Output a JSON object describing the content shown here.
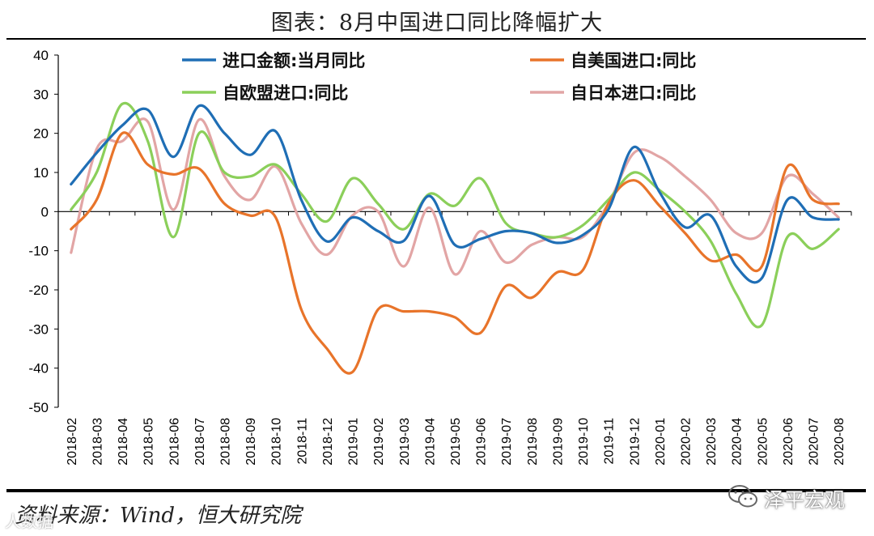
{
  "title": "图表：8月中国进口同比降幅扩大",
  "source": "资料来源：Wind，恒大研究院",
  "brand": "泽平宏观",
  "watermark": "人数据",
  "chart_data": {
    "type": "line",
    "title": "图表：8月中国进口同比降幅扩大",
    "ylim": [
      -50,
      40
    ],
    "yticks": [
      "40",
      "30",
      "20",
      "10",
      "0",
      "-10",
      "-20",
      "-30",
      "-40",
      "-50"
    ],
    "x": [
      "2018-02",
      "2018-03",
      "2018-04",
      "2018-05",
      "2018-06",
      "2018-07",
      "2018-08",
      "2018-09",
      "2018-10",
      "2018-11",
      "2018-12",
      "2019-01",
      "2019-02",
      "2019-03",
      "2019-04",
      "2019-05",
      "2019-06",
      "2019-07",
      "2019-08",
      "2019-09",
      "2019-10",
      "2019-11",
      "2019-12",
      "2020-01",
      "2020-02",
      "2020-03",
      "2020-04",
      "2020-05",
      "2020-06",
      "2020-07",
      "2020-08"
    ],
    "legend_position": "top",
    "series": [
      {
        "name": "进口金额:当月同比",
        "color": "#1f6eb5",
        "values": [
          7,
          15,
          22,
          26,
          14,
          27,
          20,
          14.5,
          20.5,
          3,
          -7.6,
          -1.5,
          -5,
          -7.5,
          4,
          -8.5,
          -7,
          -5,
          -5.5,
          -8,
          -6,
          0.5,
          16.5,
          5,
          -4,
          -1,
          -14,
          -17,
          3,
          -1.5,
          -2
        ]
      },
      {
        "name": "自美国进口:同比",
        "color": "#e8742a",
        "values": [
          -4.5,
          3,
          20,
          12,
          9.5,
          11,
          2,
          -1,
          -1.5,
          -25,
          -35,
          -41,
          -25,
          -25.5,
          -25.5,
          -27,
          -31,
          -19,
          -22,
          -15.5,
          -15,
          2,
          8,
          1.5,
          -5.5,
          -12.5,
          -11,
          -14,
          11.5,
          3,
          2
        ]
      },
      {
        "name": "自欧盟进口:同比",
        "color": "#8bcf5a",
        "values": [
          0.5,
          10,
          27.5,
          18,
          -6.5,
          20,
          10,
          9,
          12,
          4.5,
          -2.5,
          8.5,
          2,
          -4.5,
          4.5,
          1.5,
          8.5,
          -3,
          -5.5,
          -6.5,
          -3.5,
          3,
          10,
          5.5,
          0,
          -7.5,
          -21,
          -29,
          -6.5,
          -9.5,
          -4.5
        ]
      },
      {
        "name": "自日本进口:同比",
        "color": "#e2a5a5",
        "values": [
          -10.5,
          16,
          18,
          23,
          0.5,
          23.5,
          9,
          3,
          11.5,
          -3,
          -11,
          -1,
          0,
          -14,
          1,
          -16,
          -5,
          -13,
          -8.5,
          -6.5,
          -6.5,
          2,
          15,
          14,
          9,
          3,
          -5.5,
          -5.5,
          9,
          4.5,
          -1.5
        ]
      }
    ]
  }
}
